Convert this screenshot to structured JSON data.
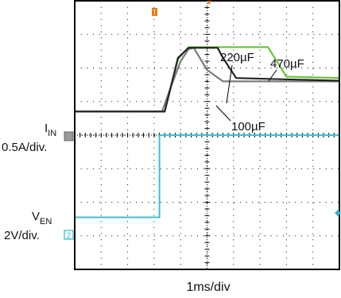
{
  "chart_data": {
    "type": "line",
    "title": "",
    "xlabel": "1ms/div",
    "x_unit": "ms",
    "xlim": [
      0,
      10
    ],
    "grid": true,
    "channels": [
      {
        "id": "I_IN",
        "label_main": "I",
        "label_sub": "IN",
        "scale": "0.5A/div.",
        "marker": "▨",
        "marker_color": "#888888",
        "ground_div": 4.7
      },
      {
        "id": "V_EN",
        "label_main": "V",
        "label_sub": "EN",
        "scale": "2V/div.",
        "marker": "2",
        "marker_color": "#2ab7c8",
        "ground_div": 1.55
      }
    ],
    "trigger": {
      "label": "T",
      "color": "#e07a10",
      "x": 3.0
    },
    "series": [
      {
        "name": "100µF",
        "color": "#7a7a7a",
        "channel": "I_IN",
        "y_unit": "A",
        "points": [
          [
            0,
            0
          ],
          [
            3.3,
            0
          ],
          [
            3.6,
            0.33
          ],
          [
            4.0,
            0.75
          ],
          [
            4.3,
            0.93
          ],
          [
            4.5,
            0.95
          ],
          [
            5.0,
            0.62
          ],
          [
            5.6,
            0.45
          ],
          [
            10,
            0.45
          ]
        ]
      },
      {
        "name": "220µF",
        "color": "#222222",
        "channel": "I_IN",
        "y_unit": "A",
        "points": [
          [
            0,
            0
          ],
          [
            3.4,
            0
          ],
          [
            3.9,
            0.8
          ],
          [
            4.3,
            0.95
          ],
          [
            5.4,
            0.95
          ],
          [
            5.6,
            0.8
          ],
          [
            6.1,
            0.5
          ],
          [
            10,
            0.46
          ]
        ]
      },
      {
        "name": "470µF",
        "color": "#6cc23c",
        "channel": "I_IN",
        "y_unit": "A",
        "points": [
          [
            0,
            0
          ],
          [
            3.4,
            0
          ],
          [
            3.9,
            0.78
          ],
          [
            4.3,
            0.96
          ],
          [
            7.3,
            0.96
          ],
          [
            8.0,
            0.52
          ],
          [
            10,
            0.5
          ]
        ]
      },
      {
        "name": "V_EN",
        "color": "#3fbfd0",
        "channel": "V_EN",
        "y_unit": "V",
        "points": [
          [
            0,
            0
          ],
          [
            3.2,
            0
          ],
          [
            3.2,
            4.9
          ],
          [
            10,
            4.9
          ]
        ]
      }
    ],
    "annotations": [
      {
        "text": "220µF",
        "series": "220µF"
      },
      {
        "text": "470µF",
        "series": "470µF"
      },
      {
        "text": "100µF",
        "series": "100µF"
      }
    ]
  }
}
